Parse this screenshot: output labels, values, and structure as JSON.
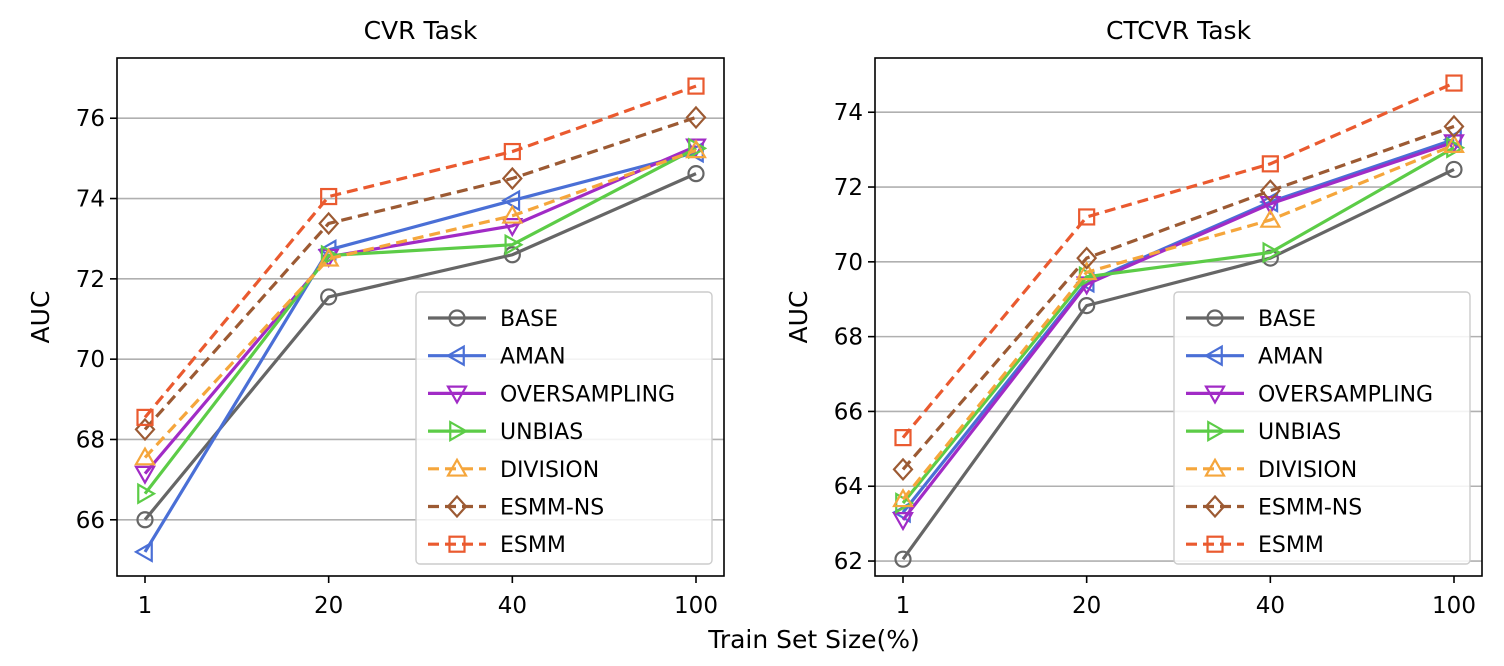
{
  "figure": {
    "xlabel": "Train Set Size(%)"
  },
  "series_styles": [
    {
      "name": "BASE",
      "color": "#666666",
      "marker": "circle",
      "dash": "solid"
    },
    {
      "name": "AMAN",
      "color": "#4a6fd6",
      "marker": "triangle-left",
      "dash": "solid"
    },
    {
      "name": "OVERSAMPLING",
      "color": "#a12bc6",
      "marker": "triangle-down",
      "dash": "solid"
    },
    {
      "name": "UNBIAS",
      "color": "#5ccc47",
      "marker": "triangle-right",
      "dash": "solid"
    },
    {
      "name": "DIVISION",
      "color": "#f5a63c",
      "marker": "triangle-up",
      "dash": "dashed"
    },
    {
      "name": "ESMM-NS",
      "color": "#9c5a33",
      "marker": "diamond",
      "dash": "dashed"
    },
    {
      "name": "ESMM",
      "color": "#ea5a2f",
      "marker": "square",
      "dash": "dashed"
    }
  ],
  "chart_data": [
    {
      "type": "line",
      "title": "CVR Task",
      "xlabel": "Train Set Size(%)",
      "ylabel": "AUC",
      "categories": [
        "1",
        "20",
        "40",
        "100"
      ],
      "ylim": [
        64.6,
        77.5
      ],
      "yticks": [
        66,
        68,
        70,
        72,
        74,
        76
      ],
      "grid": "horizontal",
      "legend": "bottom-right",
      "series": [
        {
          "name": "BASE",
          "values": [
            66.0,
            71.55,
            72.6,
            74.62
          ]
        },
        {
          "name": "AMAN",
          "values": [
            65.2,
            72.72,
            73.95,
            75.15
          ]
        },
        {
          "name": "OVERSAMPLING",
          "values": [
            67.15,
            72.55,
            73.32,
            75.3
          ]
        },
        {
          "name": "UNBIAS",
          "values": [
            66.65,
            72.58,
            72.85,
            75.25
          ]
        },
        {
          "name": "DIVISION",
          "values": [
            67.55,
            72.5,
            73.57,
            75.2
          ]
        },
        {
          "name": "ESMM-NS",
          "values": [
            68.25,
            73.38,
            74.5,
            76.02
          ]
        },
        {
          "name": "ESMM",
          "values": [
            68.55,
            74.05,
            75.17,
            76.8
          ]
        }
      ]
    },
    {
      "type": "line",
      "title": "CTCVR Task",
      "xlabel": "Train Set Size(%)",
      "ylabel": "AUC",
      "categories": [
        "1",
        "20",
        "40",
        "100"
      ],
      "ylim": [
        61.6,
        75.45
      ],
      "yticks": [
        62,
        64,
        66,
        68,
        70,
        72,
        74
      ],
      "grid": "horizontal",
      "legend": "bottom-right",
      "series": [
        {
          "name": "BASE",
          "values": [
            62.05,
            68.83,
            70.1,
            72.47
          ]
        },
        {
          "name": "AMAN",
          "values": [
            63.3,
            69.45,
            71.6,
            73.27
          ]
        },
        {
          "name": "OVERSAMPLING",
          "values": [
            63.1,
            69.4,
            71.55,
            73.2
          ]
        },
        {
          "name": "UNBIAS",
          "values": [
            63.55,
            69.6,
            70.25,
            73.05
          ]
        },
        {
          "name": "DIVISION",
          "values": [
            63.65,
            69.72,
            71.12,
            73.12
          ]
        },
        {
          "name": "ESMM-NS",
          "values": [
            64.45,
            70.1,
            71.9,
            73.62
          ]
        },
        {
          "name": "ESMM",
          "values": [
            65.3,
            71.2,
            72.62,
            74.78
          ]
        }
      ]
    }
  ]
}
